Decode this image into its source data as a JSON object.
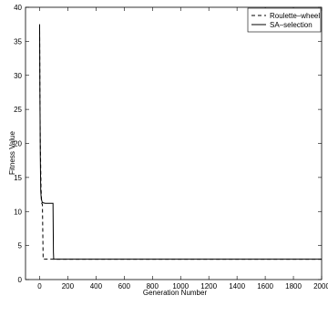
{
  "chart_data": {
    "type": "line",
    "title": "",
    "xlabel": "Generation Number",
    "ylabel": "Fitness Value",
    "xlim": [
      -100,
      2000
    ],
    "ylim": [
      0,
      40
    ],
    "grid": false,
    "legend_position": "top-right",
    "x_ticks": [
      0,
      200,
      400,
      600,
      800,
      1000,
      1200,
      1400,
      1600,
      1800,
      2000
    ],
    "y_ticks": [
      0,
      5,
      10,
      15,
      20,
      25,
      30,
      35,
      40
    ],
    "series": [
      {
        "name": "Roulette–wheel",
        "line_style": "dashed",
        "color": "#000000",
        "x": [
          0,
          2,
          5,
          10,
          15,
          20,
          25,
          30,
          2000
        ],
        "y": [
          37.5,
          28,
          20,
          13.5,
          11.2,
          11.0,
          3.0,
          3.0,
          3.0
        ]
      },
      {
        "name": "SA–selection",
        "line_style": "solid",
        "color": "#000000",
        "x": [
          0,
          2,
          5,
          8,
          12,
          20,
          40,
          80,
          95,
          98,
          100,
          2000
        ],
        "y": [
          37.5,
          28,
          18,
          13,
          11.8,
          11.3,
          11.2,
          11.2,
          11.2,
          4.0,
          3.0,
          3.0
        ]
      }
    ]
  }
}
